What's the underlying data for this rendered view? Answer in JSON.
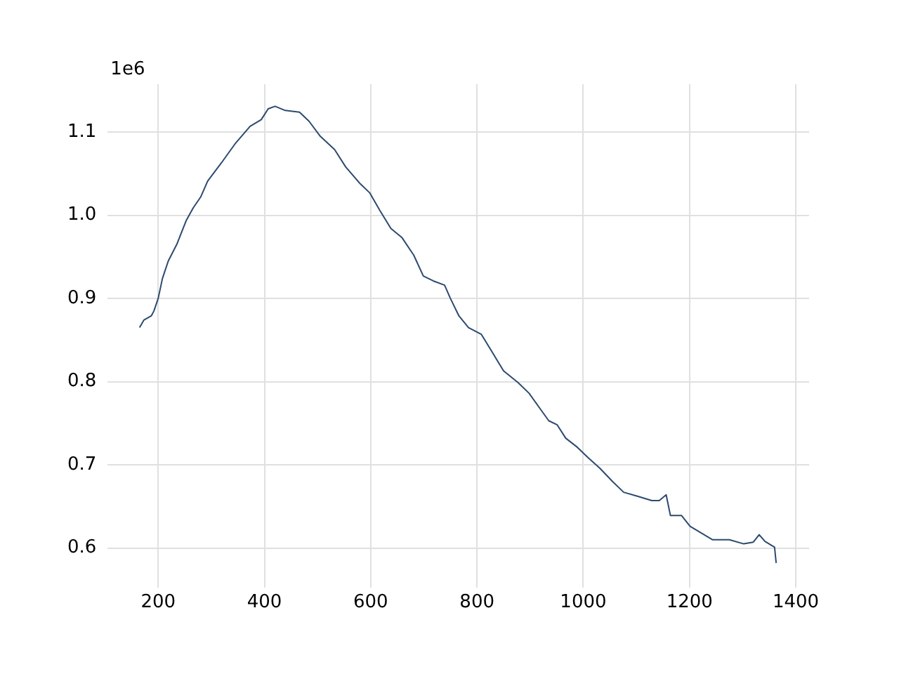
{
  "chart_data": {
    "type": "line",
    "annotations": [
      "1e6"
    ],
    "x": [
      165,
      173,
      187,
      192,
      200,
      208,
      219,
      235,
      253,
      266,
      280,
      293,
      319,
      346,
      373,
      394,
      407,
      420,
      439,
      466,
      484,
      505,
      532,
      553,
      580,
      598,
      617,
      638,
      659,
      681,
      699,
      718,
      739,
      750,
      766,
      784,
      808,
      829,
      850,
      877,
      898,
      917,
      935,
      951,
      967,
      989,
      1010,
      1031,
      1055,
      1076,
      1103,
      1129,
      1143,
      1156,
      1164,
      1185,
      1201,
      1222,
      1243,
      1275,
      1302,
      1320,
      1331,
      1342,
      1360,
      1363
    ],
    "series": [
      {
        "color": "#2c4a6e",
        "values": [
          0.865,
          0.874,
          0.879,
          0.885,
          0.9,
          0.924,
          0.945,
          0.965,
          0.994,
          1.009,
          1.022,
          1.041,
          1.063,
          1.087,
          1.107,
          1.115,
          1.128,
          1.131,
          1.126,
          1.124,
          1.113,
          1.095,
          1.079,
          1.058,
          1.038,
          1.027,
          1.006,
          0.984,
          0.973,
          0.952,
          0.927,
          0.921,
          0.916,
          0.9,
          0.879,
          0.865,
          0.857,
          0.835,
          0.813,
          0.799,
          0.786,
          0.769,
          0.753,
          0.748,
          0.732,
          0.721,
          0.708,
          0.696,
          0.68,
          0.667,
          0.662,
          0.657,
          0.657,
          0.664,
          0.639,
          0.639,
          0.626,
          0.618,
          0.61,
          0.61,
          0.605,
          0.607,
          0.616,
          0.608,
          0.601,
          0.582
        ]
      }
    ],
    "xlim": [
      105,
      1425
    ],
    "xticks": [
      200,
      400,
      600,
      800,
      1000,
      1200,
      1400
    ],
    "ylim": [
      0.5525,
      1.1575
    ],
    "yticks": [
      0.6,
      0.7,
      0.8,
      0.9,
      {
        "value": 1.0,
        "label": "1.0"
      },
      1.1
    ],
    "grid": true,
    "legend": false,
    "marker": "none",
    "line_style": "solid"
  }
}
